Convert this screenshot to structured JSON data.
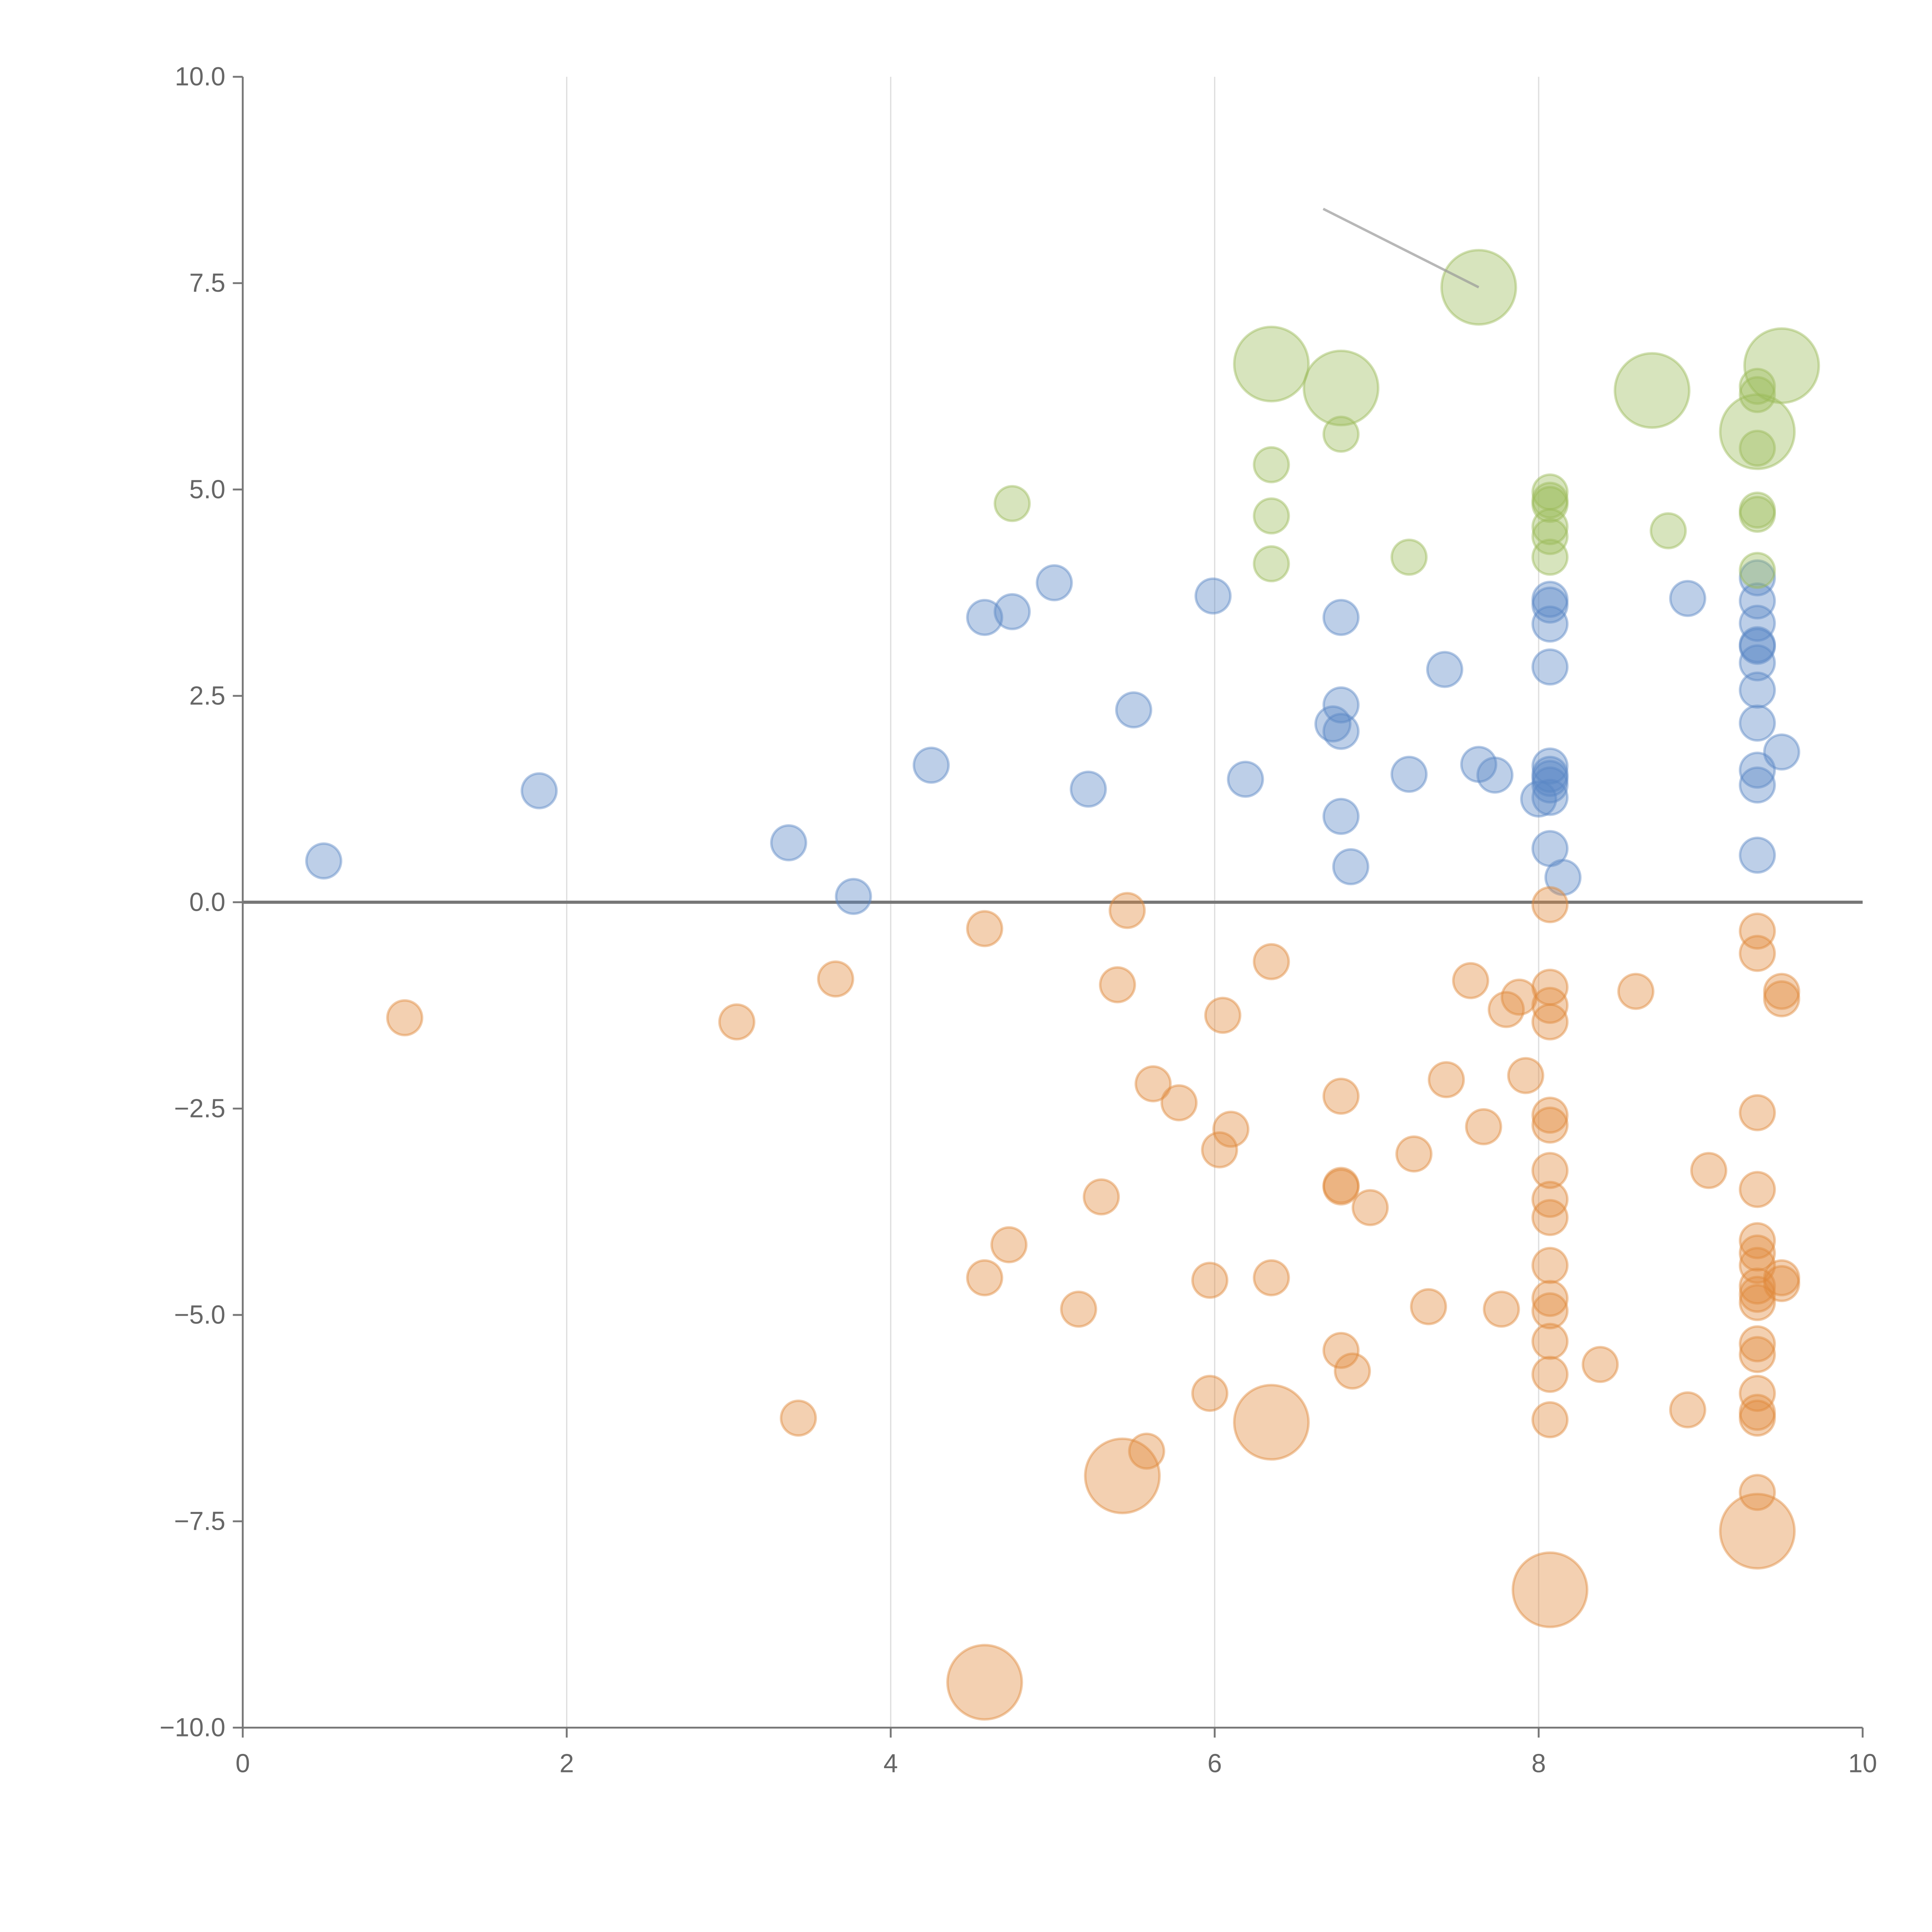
{
  "chart_data": {
    "type": "scatter",
    "title": "",
    "xlabel": "",
    "ylabel": "",
    "xlim": [
      0,
      10
    ],
    "ylim": [
      -10,
      10
    ],
    "grid": "vertical",
    "x_ticks": [
      "0",
      "2",
      "4",
      "6",
      "8",
      "10"
    ],
    "y_ticks": [
      "10.0",
      "7.5",
      "5.0",
      "2.5",
      "0.0",
      "−2.5",
      "−5.0",
      "−7.5",
      "−10.0"
    ],
    "colors": {
      "blue": "#5b87c5",
      "orange": "#e08a3c",
      "green": "#9bbb59"
    },
    "series": [
      {
        "name": "blue",
        "color": "#5b87c5",
        "points": [
          [
            0.5,
            0.5,
            1
          ],
          [
            1.83,
            1.35,
            1
          ],
          [
            3.37,
            0.72,
            1
          ],
          [
            3.77,
            0.07,
            1
          ],
          [
            4.25,
            1.66,
            1
          ],
          [
            4.58,
            3.45,
            1
          ],
          [
            4.75,
            3.52,
            1
          ],
          [
            5.01,
            3.87,
            1
          ],
          [
            5.22,
            1.37,
            1
          ],
          [
            5.5,
            2.33,
            1
          ],
          [
            5.99,
            3.71,
            1
          ],
          [
            6.19,
            1.49,
            1
          ],
          [
            6.73,
            2.16,
            1
          ],
          [
            6.78,
            3.45,
            1
          ],
          [
            6.78,
            2.39,
            1
          ],
          [
            6.78,
            2.07,
            1
          ],
          [
            6.78,
            1.04,
            1
          ],
          [
            6.84,
            0.43,
            1
          ],
          [
            7.2,
            1.55,
            1
          ],
          [
            7.42,
            2.82,
            1
          ],
          [
            7.63,
            1.67,
            1
          ],
          [
            7.73,
            1.54,
            1
          ],
          [
            8.0,
            1.25,
            1
          ],
          [
            8.07,
            3.67,
            1
          ],
          [
            8.07,
            3.6,
            1
          ],
          [
            8.07,
            3.37,
            1
          ],
          [
            8.07,
            2.85,
            1
          ],
          [
            8.07,
            1.65,
            1
          ],
          [
            8.07,
            1.55,
            1
          ],
          [
            8.07,
            1.5,
            1
          ],
          [
            8.07,
            1.42,
            1
          ],
          [
            8.07,
            1.27,
            1
          ],
          [
            8.07,
            0.65,
            1
          ],
          [
            8.15,
            0.3,
            1
          ],
          [
            8.92,
            3.68,
            1
          ],
          [
            9.35,
            3.93,
            1
          ],
          [
            9.35,
            3.65,
            1
          ],
          [
            9.35,
            3.38,
            1
          ],
          [
            9.35,
            3.12,
            1
          ],
          [
            9.35,
            3.1,
            1
          ],
          [
            9.35,
            2.9,
            1
          ],
          [
            9.35,
            2.57,
            1
          ],
          [
            9.35,
            2.17,
            1
          ],
          [
            9.35,
            1.6,
            1
          ],
          [
            9.35,
            1.42,
            1
          ],
          [
            9.35,
            0.57,
            1
          ],
          [
            9.5,
            1.82,
            1
          ]
        ]
      },
      {
        "name": "green",
        "color": "#9bbb59",
        "points": [
          [
            4.75,
            4.83,
            1
          ],
          [
            6.35,
            6.52,
            3
          ],
          [
            6.35,
            5.3,
            1
          ],
          [
            6.35,
            4.68,
            1
          ],
          [
            6.35,
            4.1,
            1
          ],
          [
            6.78,
            6.23,
            3
          ],
          [
            6.78,
            5.67,
            1
          ],
          [
            7.2,
            4.18,
            1
          ],
          [
            7.63,
            7.45,
            3
          ],
          [
            8.07,
            4.97,
            1
          ],
          [
            8.07,
            4.87,
            1
          ],
          [
            8.07,
            4.82,
            1
          ],
          [
            8.07,
            4.55,
            1
          ],
          [
            8.07,
            4.43,
            1
          ],
          [
            8.07,
            4.18,
            1
          ],
          [
            8.7,
            6.2,
            3
          ],
          [
            8.8,
            4.5,
            1
          ],
          [
            9.35,
            6.25,
            1
          ],
          [
            9.35,
            6.15,
            1
          ],
          [
            9.35,
            5.7,
            3
          ],
          [
            9.35,
            5.5,
            1
          ],
          [
            9.35,
            4.75,
            1
          ],
          [
            9.35,
            4.7,
            1
          ],
          [
            9.35,
            4.02,
            1
          ],
          [
            9.5,
            6.5,
            3
          ]
        ]
      },
      {
        "name": "orange",
        "color": "#e08a3c",
        "points": [
          [
            1.0,
            -1.4,
            1
          ],
          [
            3.05,
            -1.45,
            1
          ],
          [
            3.43,
            -6.25,
            1
          ],
          [
            3.66,
            -0.93,
            1
          ],
          [
            4.58,
            -0.32,
            1
          ],
          [
            4.58,
            -4.55,
            1
          ],
          [
            4.58,
            -9.45,
            3
          ],
          [
            4.73,
            -4.15,
            1
          ],
          [
            5.16,
            -4.93,
            1
          ],
          [
            5.3,
            -3.57,
            1
          ],
          [
            5.4,
            -1.0,
            1
          ],
          [
            5.43,
            -6.95,
            3
          ],
          [
            5.46,
            -0.1,
            1
          ],
          [
            5.58,
            -6.65,
            1
          ],
          [
            5.62,
            -2.2,
            1
          ],
          [
            5.78,
            -2.43,
            1
          ],
          [
            5.97,
            -4.58,
            1
          ],
          [
            5.97,
            -5.95,
            1
          ],
          [
            6.03,
            -3.0,
            1
          ],
          [
            6.05,
            -1.37,
            1
          ],
          [
            6.1,
            -2.75,
            1
          ],
          [
            6.35,
            -0.72,
            1
          ],
          [
            6.35,
            -4.55,
            1
          ],
          [
            6.35,
            -6.3,
            3
          ],
          [
            6.78,
            -2.35,
            1
          ],
          [
            6.78,
            -3.43,
            1
          ],
          [
            6.78,
            -3.45,
            1
          ],
          [
            6.78,
            -5.43,
            1
          ],
          [
            6.85,
            -5.68,
            1
          ],
          [
            6.96,
            -3.7,
            1
          ],
          [
            7.23,
            -3.05,
            1
          ],
          [
            7.32,
            -4.9,
            1
          ],
          [
            7.43,
            -2.15,
            1
          ],
          [
            7.58,
            -0.95,
            1
          ],
          [
            7.66,
            -2.72,
            1
          ],
          [
            7.77,
            -4.93,
            1
          ],
          [
            7.8,
            -1.3,
            1
          ],
          [
            7.88,
            -1.15,
            1
          ],
          [
            7.92,
            -2.1,
            1
          ],
          [
            8.07,
            -0.03,
            1
          ],
          [
            8.07,
            -1.03,
            1
          ],
          [
            8.07,
            -1.25,
            1
          ],
          [
            8.07,
            -1.45,
            1
          ],
          [
            8.07,
            -2.58,
            1
          ],
          [
            8.07,
            -2.7,
            1
          ],
          [
            8.07,
            -3.25,
            1
          ],
          [
            8.07,
            -3.6,
            1
          ],
          [
            8.07,
            -3.82,
            1
          ],
          [
            8.07,
            -4.4,
            1
          ],
          [
            8.07,
            -4.8,
            1
          ],
          [
            8.07,
            -4.95,
            1
          ],
          [
            8.07,
            -5.32,
            1
          ],
          [
            8.07,
            -5.72,
            1
          ],
          [
            8.07,
            -6.27,
            1
          ],
          [
            8.07,
            -8.33,
            3
          ],
          [
            8.38,
            -5.6,
            1
          ],
          [
            8.6,
            -1.08,
            1
          ],
          [
            8.92,
            -6.15,
            1
          ],
          [
            9.05,
            -3.25,
            1
          ],
          [
            9.35,
            -0.35,
            1
          ],
          [
            9.35,
            -0.62,
            1
          ],
          [
            9.35,
            -2.55,
            1
          ],
          [
            9.35,
            -3.48,
            1
          ],
          [
            9.35,
            -4.1,
            1
          ],
          [
            9.35,
            -4.25,
            1
          ],
          [
            9.35,
            -4.4,
            1
          ],
          [
            9.35,
            -4.65,
            1
          ],
          [
            9.35,
            -4.75,
            1
          ],
          [
            9.35,
            -4.85,
            1
          ],
          [
            9.35,
            -5.35,
            1
          ],
          [
            9.35,
            -5.48,
            1
          ],
          [
            9.35,
            -5.95,
            1
          ],
          [
            9.35,
            -6.18,
            1
          ],
          [
            9.35,
            -6.25,
            1
          ],
          [
            9.35,
            -7.15,
            1
          ],
          [
            9.35,
            -7.62,
            3
          ],
          [
            9.5,
            -1.08,
            1
          ],
          [
            9.5,
            -1.17,
            1
          ],
          [
            9.5,
            -4.55,
            1
          ],
          [
            9.5,
            -4.62,
            1
          ]
        ]
      }
    ],
    "annotations": [
      {
        "from": [
          6.67,
          8.4
        ],
        "to": [
          7.63,
          7.45
        ]
      }
    ]
  }
}
